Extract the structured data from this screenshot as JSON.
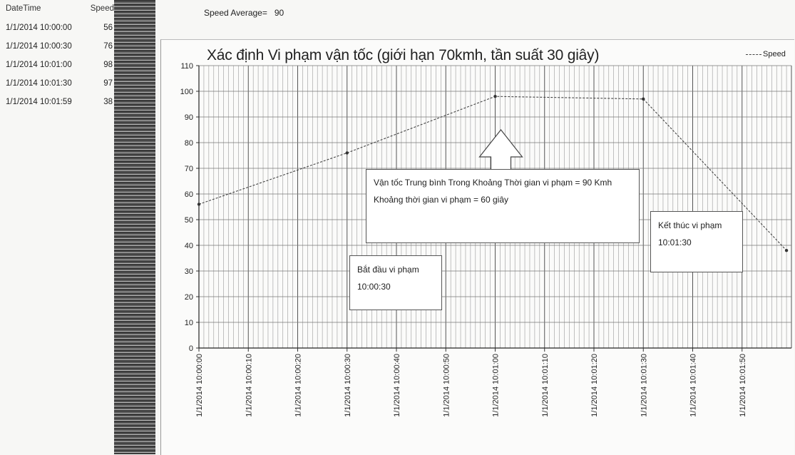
{
  "table": {
    "headers": [
      "DateTime",
      "Speed"
    ],
    "rows": [
      [
        "1/1/2014 10:00:00",
        "56"
      ],
      [
        "1/1/2014 10:00:30",
        "76"
      ],
      [
        "1/1/2014 10:01:00",
        "98"
      ],
      [
        "1/1/2014 10:01:30",
        "97"
      ],
      [
        "1/1/2014 10:01:59",
        "38"
      ]
    ]
  },
  "summary": {
    "label": "Speed Average=",
    "value": "90"
  },
  "annotations": {
    "main_line1": "Vận tốc Trung bình Trong Khoảng Thời gian vi phạm = 90 Kmh",
    "main_line2": "Khoảng thời gian vi phạm = 60 giây",
    "start_line1": "Bắt đầu vi phạm",
    "start_line2": "10:00:30",
    "end_line1": "Kết thúc vi phạm",
    "end_line2": "10:01:30"
  },
  "chart_data": {
    "type": "line",
    "title": "Xác định Vi phạm vận tốc (giới hạn 70kmh, tần suất 30 giây)",
    "xlabel": "",
    "ylabel": "",
    "x_ticks": [
      "1/1/2014 10:00:00",
      "1/1/2014 10:00:10",
      "1/1/2014 10:00:20",
      "1/1/2014 10:00:30",
      "1/1/2014 10:00:40",
      "1/1/2014 10:00:50",
      "1/1/2014 10:01:00",
      "1/1/2014 10:01:10",
      "1/1/2014 10:01:20",
      "1/1/2014 10:01:30",
      "1/1/2014 10:01:40",
      "1/1/2014 10:01:50"
    ],
    "x_range": [
      "1/1/2014 10:00:00",
      "1/1/2014 10:02:00"
    ],
    "ylim": [
      0,
      110
    ],
    "y_ticks": [
      0,
      10,
      20,
      30,
      40,
      50,
      60,
      70,
      80,
      90,
      100,
      110
    ],
    "grid": true,
    "legend_position": "top-right",
    "series": [
      {
        "name": "Speed",
        "points": [
          {
            "x": "1/1/2014 10:00:00",
            "y": 56
          },
          {
            "x": "1/1/2014 10:00:30",
            "y": 76
          },
          {
            "x": "1/1/2014 10:01:00",
            "y": 98
          },
          {
            "x": "1/1/2014 10:01:30",
            "y": 97
          },
          {
            "x": "1/1/2014 10:01:59",
            "y": 38
          }
        ]
      }
    ]
  }
}
